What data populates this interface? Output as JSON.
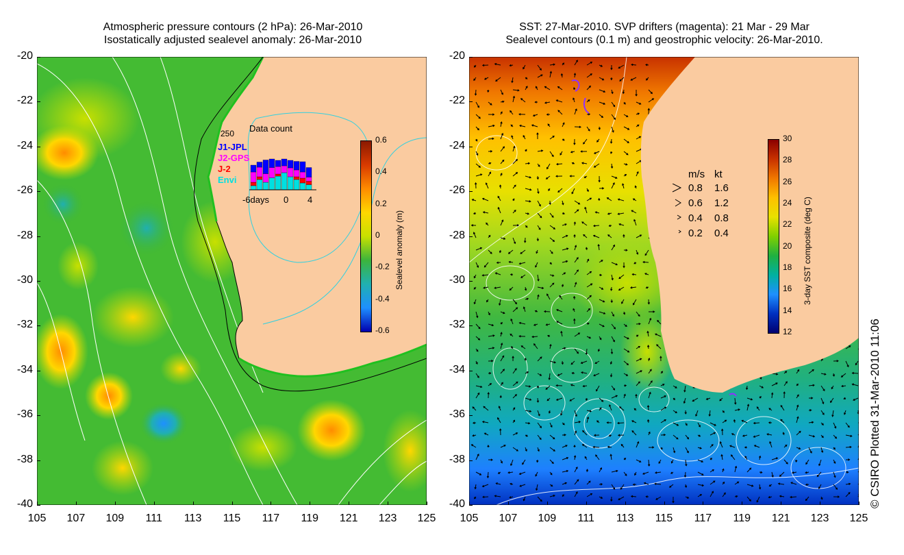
{
  "left": {
    "title_line1": "Atmospheric pressure contours (2 hPa): 26-Mar-2010",
    "title_line2": "Isostatically adjusted sealevel anomaly: 26-Mar-2010",
    "yticks": [
      "-20",
      "-22",
      "-24",
      "-26",
      "-28",
      "-30",
      "-32",
      "-34",
      "-36",
      "-38",
      "-40"
    ],
    "xticks": [
      "105",
      "107",
      "109",
      "111",
      "113",
      "115",
      "117",
      "119",
      "121",
      "123",
      "125"
    ],
    "colorbar": {
      "ticks": [
        "0.6",
        "0.4",
        "0.2",
        "0",
        "-0.2",
        "-0.4",
        "-0.6"
      ],
      "title": "Sealevel anomaly (m)",
      "colors": [
        "#8b1a00",
        "#d93a00",
        "#ff8c00",
        "#ffd700",
        "#c8e000",
        "#3cb43c",
        "#20b0b0",
        "#1e90ff",
        "#0000b0"
      ]
    },
    "inset": {
      "title": "Data count",
      "ymax_label": "250",
      "x_label_left": "-6days",
      "x_label_mid": "0",
      "x_label_right": "4",
      "missions": [
        {
          "name": "J1-JPL",
          "color": "#0000ff"
        },
        {
          "name": "J2-GPS",
          "color": "#ff00ff"
        },
        {
          "name": "J-2",
          "color": "#ff0000"
        },
        {
          "name": "Envi",
          "color": "#00e0e0"
        }
      ]
    }
  },
  "right": {
    "title_line1": "SST: 27-Mar-2010. SVP drifters (magenta): 21 Mar - 29 Mar",
    "title_line2": "Sealevel contours (0.1 m) and geostrophic velocity: 26-Mar-2010.",
    "yticks": [
      "-20",
      "-22",
      "-24",
      "-26",
      "-28",
      "-30",
      "-32",
      "-34",
      "-36",
      "-38",
      "-40"
    ],
    "xticks": [
      "105",
      "107",
      "109",
      "111",
      "113",
      "115",
      "117",
      "119",
      "121",
      "123",
      "125"
    ],
    "colorbar": {
      "ticks": [
        "30",
        "28",
        "26",
        "24",
        "22",
        "20",
        "18",
        "16",
        "14",
        "12"
      ],
      "title": "3-day SST composite (deg C)",
      "colors": [
        "#8b0000",
        "#c83200",
        "#f07800",
        "#ffc000",
        "#e8e000",
        "#80d000",
        "#20b040",
        "#00b0a0",
        "#1e90ff",
        "#0030c0",
        "#000070"
      ]
    },
    "velocity_legend": {
      "header_ms": "m/s",
      "header_kt": "kt",
      "rows": [
        {
          "ms": "0.8",
          "kt": "1.6"
        },
        {
          "ms": "0.6",
          "kt": "1.2"
        },
        {
          "ms": "0.4",
          "kt": "0.8"
        },
        {
          "ms": "0.2",
          "kt": "0.4"
        }
      ]
    }
  },
  "credit": "© CSIRO Plotted 31-Mar-2010 11:06",
  "colors": {
    "land": "#facba0",
    "contour_white": "#ffffff",
    "contour_cyan": "#30d0e0",
    "coast_green": "#20c020"
  }
}
